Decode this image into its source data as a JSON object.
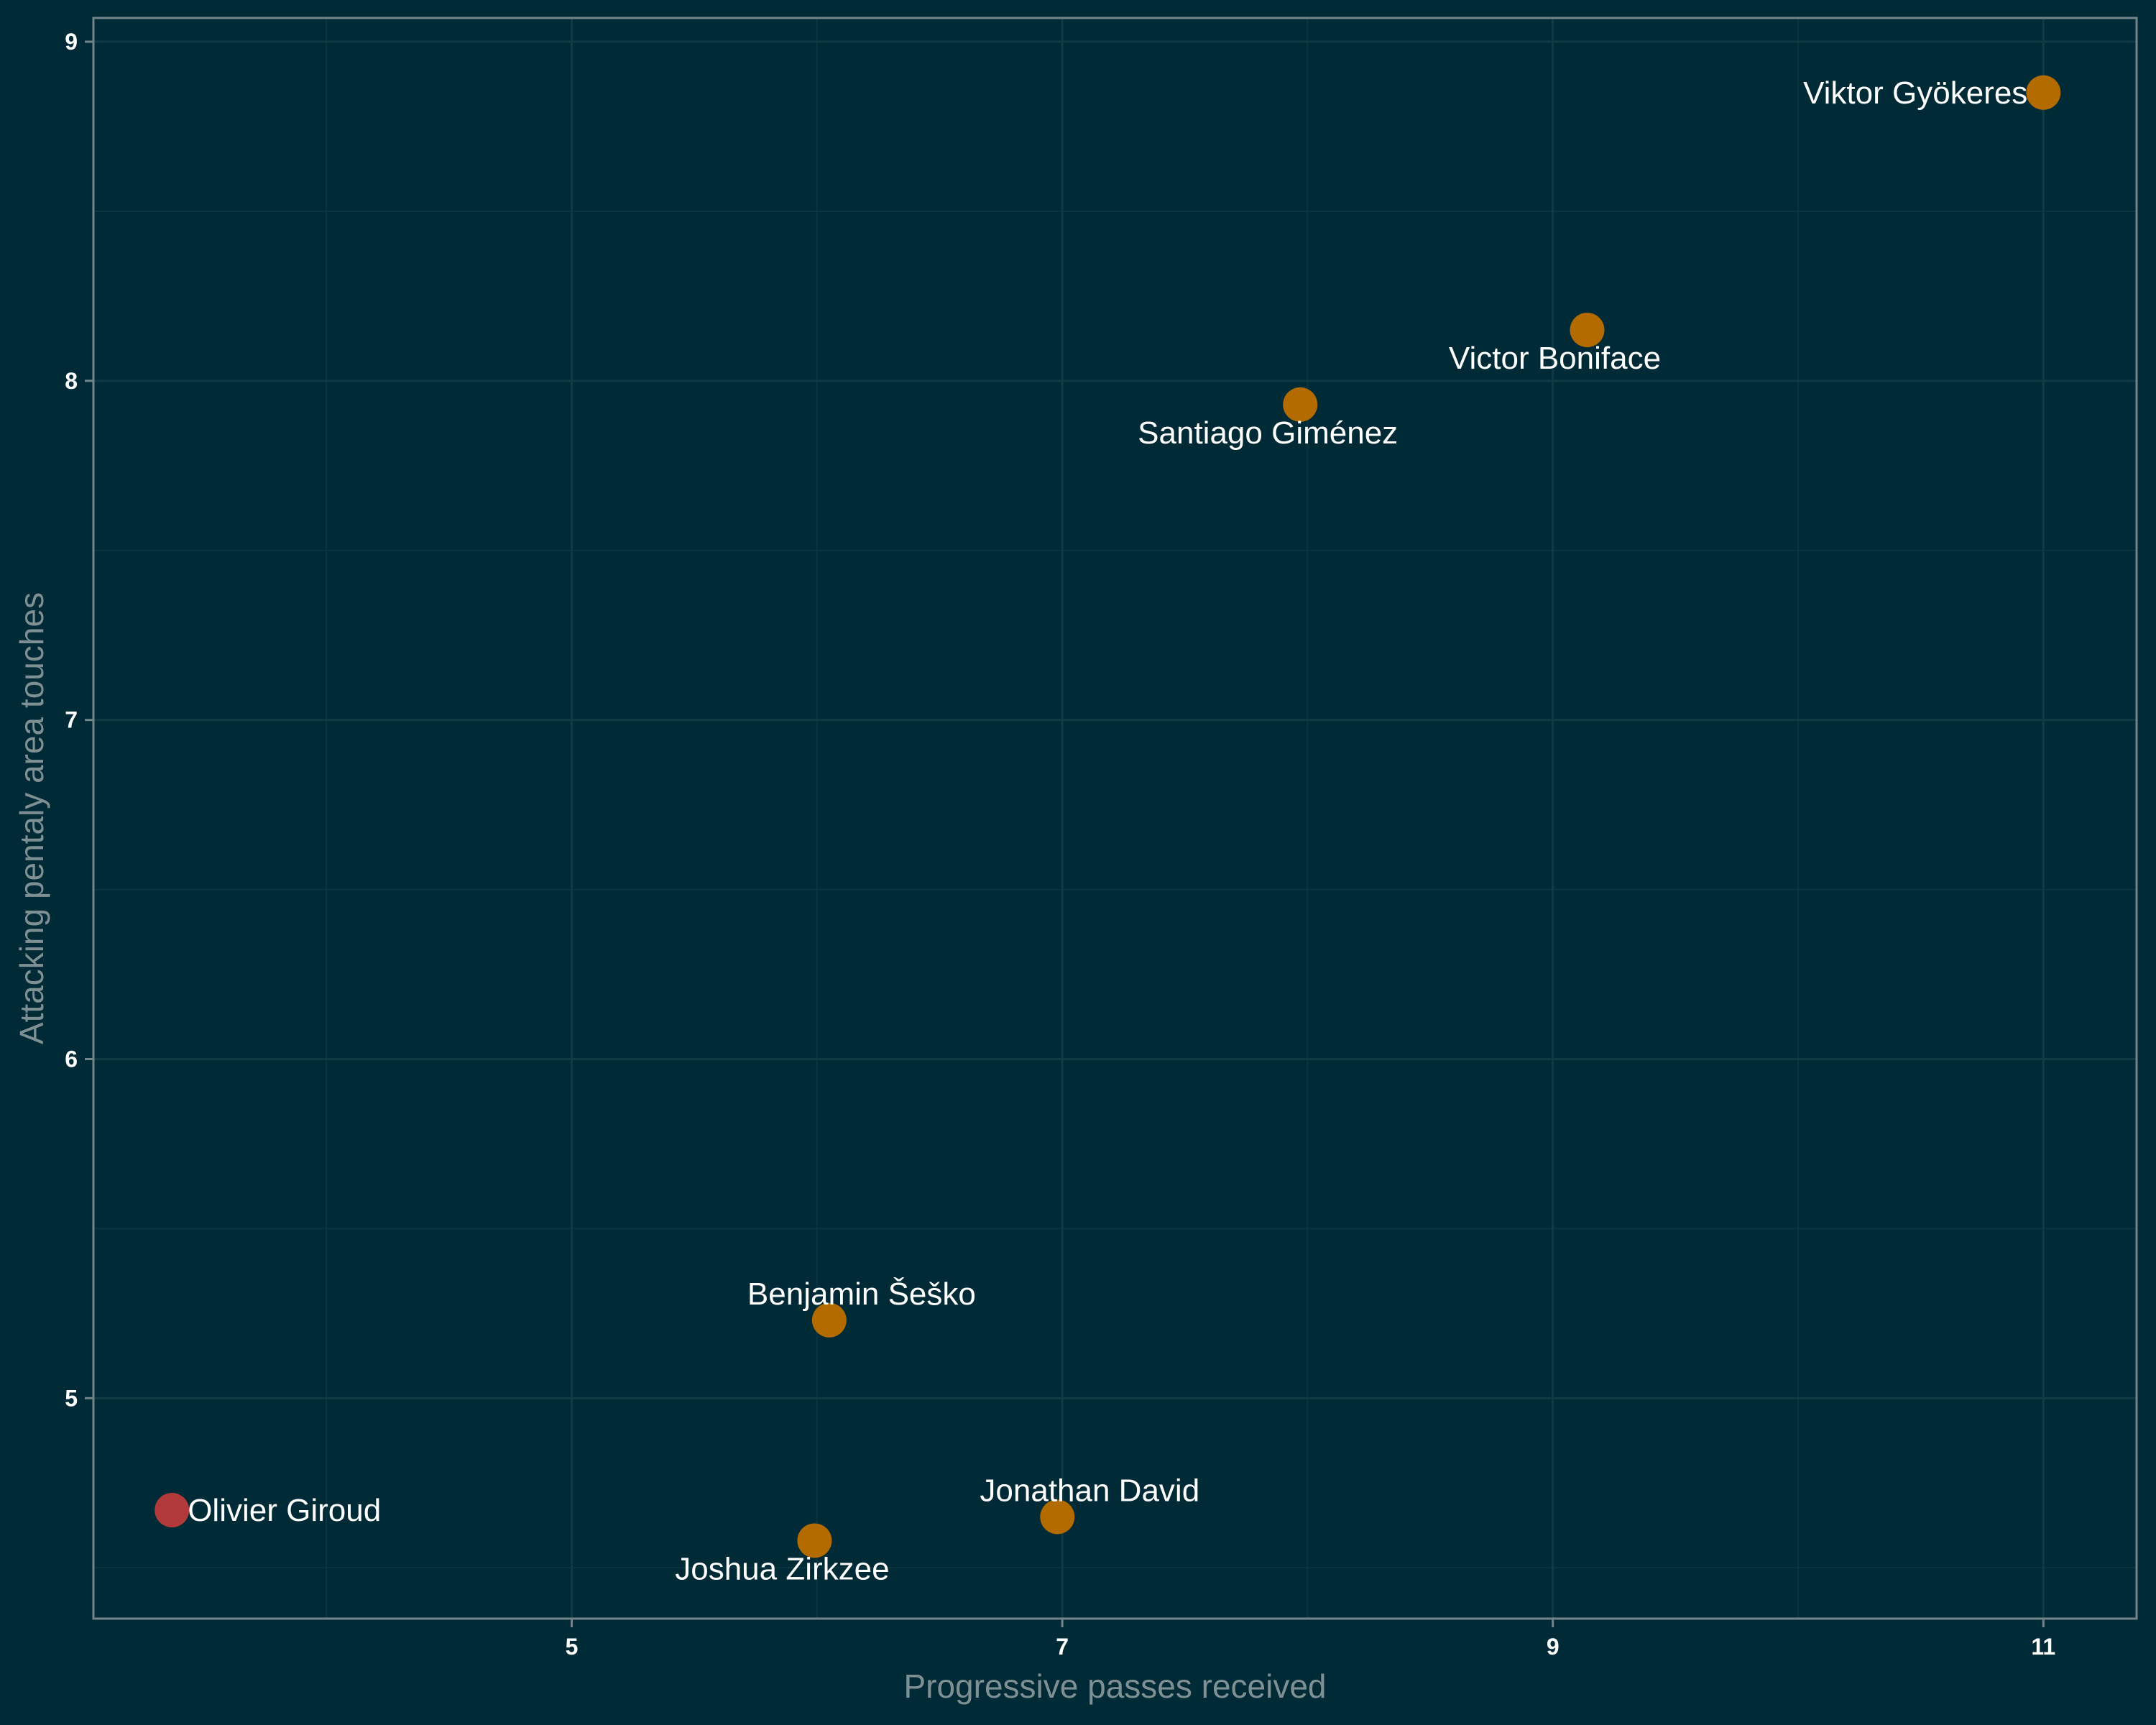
{
  "chart_data": {
    "type": "scatter",
    "title": "",
    "xlabel": "Progressive passes received",
    "ylabel": "Attacking pentaly area touches",
    "xlim": [
      3.05,
      11.38
    ],
    "ylim": [
      4.35,
      9.07
    ],
    "x_ticks": [
      "5",
      "7",
      "9",
      "11"
    ],
    "x_tick_values": [
      5,
      7,
      9,
      11
    ],
    "y_ticks": [
      "5",
      "6",
      "7",
      "8",
      "9"
    ],
    "y_tick_values": [
      5,
      6,
      7,
      8,
      9
    ],
    "x_minor_values": [
      4,
      6,
      8,
      10
    ],
    "y_minor_values": [
      4.5,
      5.5,
      6.5,
      7.5,
      8.5
    ],
    "grid": true,
    "colors": {
      "default": "#b36b00",
      "highlight": "#b33a3a"
    },
    "points": [
      {
        "name": "Viktor Gyökeres",
        "x": 11.0,
        "y": 8.85,
        "color": "#b36b00",
        "anchor": "end"
      },
      {
        "name": "Victor Boniface",
        "x": 9.14,
        "y": 8.15,
        "color": "#b36b00",
        "anchor": "below"
      },
      {
        "name": "Santiago Giménez",
        "x": 7.97,
        "y": 7.93,
        "color": "#b36b00",
        "anchor": "below"
      },
      {
        "name": "Benjamin Šeško",
        "x": 6.05,
        "y": 5.23,
        "color": "#b36b00",
        "anchor": "above"
      },
      {
        "name": "Jonathan David",
        "x": 6.98,
        "y": 4.65,
        "color": "#b36b00",
        "anchor": "above"
      },
      {
        "name": "Joshua Zirkzee",
        "x": 5.99,
        "y": 4.58,
        "color": "#b36b00",
        "anchor": "below"
      },
      {
        "name": "Olivier Giroud",
        "x": 3.37,
        "y": 4.67,
        "color": "#b33a3a",
        "anchor": "start"
      }
    ]
  }
}
